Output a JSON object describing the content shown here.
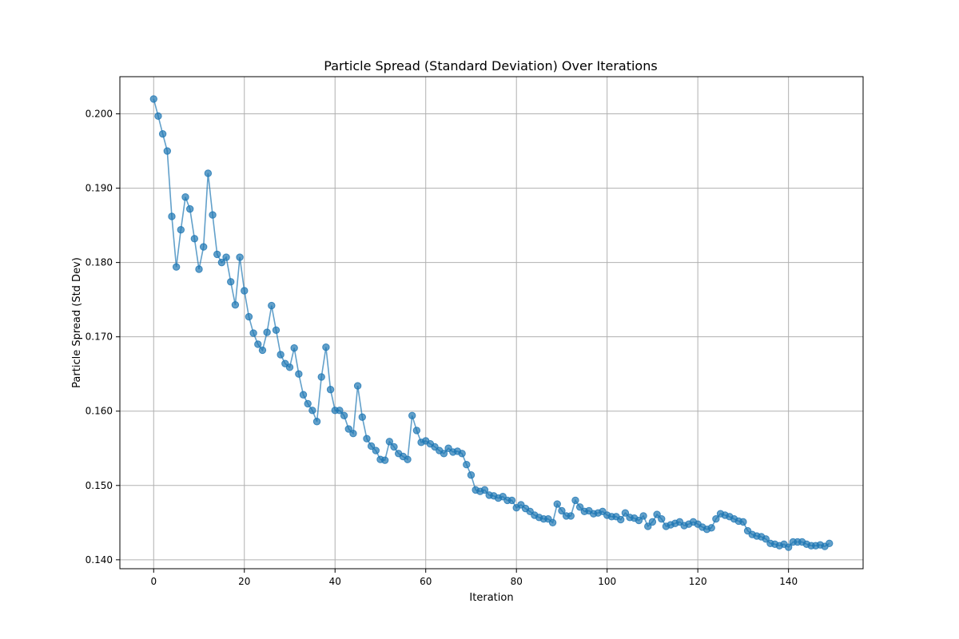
{
  "chart_data": {
    "type": "line",
    "title": "Particle Spread (Standard Deviation) Over Iterations",
    "xlabel": "Iteration",
    "ylabel": "Particle Spread (Std Dev)",
    "xlim": [
      -7.45,
      156.45
    ],
    "ylim": [
      0.1388,
      0.205
    ],
    "xticks": [
      0,
      20,
      40,
      60,
      80,
      100,
      120,
      140
    ],
    "yticks": [
      0.14,
      0.15,
      0.16,
      0.17,
      0.18,
      0.19,
      0.2
    ],
    "ytick_labels": [
      "0.140",
      "0.150",
      "0.160",
      "0.170",
      "0.180",
      "0.190",
      "0.200"
    ],
    "grid": true,
    "marker": "circle",
    "color": "#1f77b4",
    "x_start": 0,
    "values": [
      0.202,
      0.1997,
      0.1973,
      0.195,
      0.1862,
      0.1794,
      0.1844,
      0.1888,
      0.1872,
      0.1832,
      0.1791,
      0.1821,
      0.192,
      0.1864,
      0.1811,
      0.18,
      0.1807,
      0.1774,
      0.1743,
      0.1807,
      0.1762,
      0.1727,
      0.1705,
      0.169,
      0.1682,
      0.1706,
      0.1742,
      0.1709,
      0.1676,
      0.1664,
      0.1659,
      0.1685,
      0.165,
      0.1622,
      0.161,
      0.1601,
      0.1586,
      0.1646,
      0.1686,
      0.1629,
      0.1601,
      0.1601,
      0.1594,
      0.1576,
      0.157,
      0.1634,
      0.1592,
      0.1563,
      0.1553,
      0.1547,
      0.1535,
      0.1534,
      0.1559,
      0.1552,
      0.1543,
      0.1539,
      0.1535,
      0.1594,
      0.1574,
      0.1558,
      0.156,
      0.1556,
      0.1552,
      0.1547,
      0.1543,
      0.155,
      0.1545,
      0.1546,
      0.1543,
      0.1528,
      0.1514,
      0.1494,
      0.1492,
      0.1494,
      0.1487,
      0.1486,
      0.1483,
      0.1485,
      0.148,
      0.148,
      0.147,
      0.1474,
      0.1469,
      0.1465,
      0.146,
      0.1457,
      0.1455,
      0.1455,
      0.145,
      0.1475,
      0.1466,
      0.1459,
      0.1459,
      0.148,
      0.1471,
      0.1465,
      0.1466,
      0.1462,
      0.1463,
      0.1465,
      0.146,
      0.1458,
      0.1458,
      0.1454,
      0.1463,
      0.1457,
      0.1456,
      0.1453,
      0.1459,
      0.1445,
      0.1451,
      0.1461,
      0.1455,
      0.1445,
      0.1447,
      0.1449,
      0.1451,
      0.1446,
      0.1448,
      0.1451,
      0.1448,
      0.1444,
      0.1441,
      0.1443,
      0.1455,
      0.1462,
      0.146,
      0.1458,
      0.1455,
      0.1452,
      0.1451,
      0.1439,
      0.1434,
      0.1432,
      0.1431,
      0.1428,
      0.1422,
      0.1421,
      0.1419,
      0.1421,
      0.1417,
      0.1424,
      0.1424,
      0.1424,
      0.1421,
      0.1419,
      0.1419,
      0.142,
      0.1418,
      0.1422
    ]
  }
}
